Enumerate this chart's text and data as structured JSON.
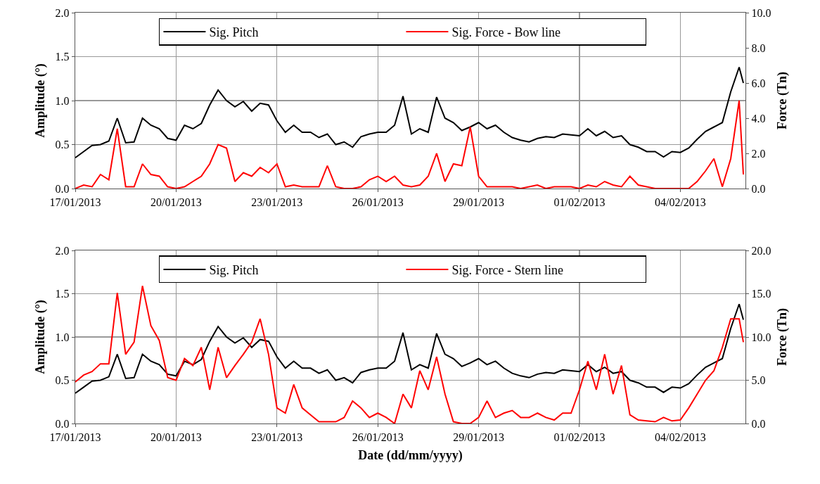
{
  "chart_data": [
    {
      "type": "line",
      "ylabel": "Amplitude (°)",
      "y2label": "Force (Tn)",
      "grid": true,
      "legend": "top",
      "line_style": "solid",
      "x": [
        "2013-01-17T00:00",
        "2013-01-17T06:00",
        "2013-01-17T12:00",
        "2013-01-17T18:00",
        "2013-01-18T00:00",
        "2013-01-18T06:00",
        "2013-01-18T12:00",
        "2013-01-18T18:00",
        "2013-01-19T00:00",
        "2013-01-19T06:00",
        "2013-01-19T12:00",
        "2013-01-19T18:00",
        "2013-01-20T00:00",
        "2013-01-20T06:00",
        "2013-01-20T12:00",
        "2013-01-20T18:00",
        "2013-01-21T00:00",
        "2013-01-21T06:00",
        "2013-01-21T12:00",
        "2013-01-21T18:00",
        "2013-01-22T00:00",
        "2013-01-22T06:00",
        "2013-01-22T12:00",
        "2013-01-22T18:00",
        "2013-01-23T00:00",
        "2013-01-23T06:00",
        "2013-01-23T12:00",
        "2013-01-23T18:00",
        "2013-01-24T00:00",
        "2013-01-24T06:00",
        "2013-01-24T12:00",
        "2013-01-24T18:00",
        "2013-01-25T00:00",
        "2013-01-25T06:00",
        "2013-01-25T12:00",
        "2013-01-25T18:00",
        "2013-01-26T00:00",
        "2013-01-26T06:00",
        "2013-01-26T12:00",
        "2013-01-26T18:00",
        "2013-01-27T00:00",
        "2013-01-27T06:00",
        "2013-01-27T12:00",
        "2013-01-27T18:00",
        "2013-01-28T00:00",
        "2013-01-28T06:00",
        "2013-01-28T12:00",
        "2013-01-28T18:00",
        "2013-01-29T00:00",
        "2013-01-29T06:00",
        "2013-01-29T12:00",
        "2013-01-29T18:00",
        "2013-01-30T00:00",
        "2013-01-30T06:00",
        "2013-01-30T12:00",
        "2013-01-30T18:00",
        "2013-01-31T00:00",
        "2013-01-31T06:00",
        "2013-01-31T12:00",
        "2013-01-31T18:00",
        "2013-02-01T00:00",
        "2013-02-01T06:00",
        "2013-02-01T12:00",
        "2013-02-01T18:00",
        "2013-02-02T00:00",
        "2013-02-02T06:00",
        "2013-02-02T12:00",
        "2013-02-02T18:00",
        "2013-02-03T00:00",
        "2013-02-03T06:00",
        "2013-02-03T12:00",
        "2013-02-03T18:00",
        "2013-02-04T00:00",
        "2013-02-04T06:00",
        "2013-02-04T12:00",
        "2013-02-04T18:00",
        "2013-02-05T00:00",
        "2013-02-05T06:00",
        "2013-02-05T12:00",
        "2013-02-05T18:00",
        "2013-02-05T21:00"
      ],
      "series": [
        {
          "name": "Sig. Pitch",
          "color": "#000000",
          "values": [
            0.35,
            0.42,
            0.49,
            0.5,
            0.54,
            0.8,
            0.52,
            0.53,
            0.8,
            0.72,
            0.68,
            0.57,
            0.55,
            0.72,
            0.68,
            0.74,
            0.95,
            1.12,
            1.0,
            0.93,
            0.99,
            0.88,
            0.97,
            0.95,
            0.77,
            0.64,
            0.72,
            0.64,
            0.64,
            0.58,
            0.62,
            0.5,
            0.53,
            0.47,
            0.59,
            0.62,
            0.64,
            0.64,
            0.72,
            1.05,
            0.62,
            0.68,
            0.64,
            1.04,
            0.8,
            0.75,
            0.66,
            0.7,
            0.75,
            0.68,
            0.72,
            0.64,
            0.58,
            0.55,
            0.53,
            0.57,
            0.59,
            0.58,
            0.62,
            0.61,
            0.6,
            0.68,
            0.6,
            0.65,
            0.58,
            0.6,
            0.5,
            0.47,
            0.42,
            0.42,
            0.36,
            0.42,
            0.41,
            0.46,
            0.56,
            0.65,
            0.7,
            0.75,
            1.1,
            1.38,
            1.2
          ]
        },
        {
          "name": "Sig. Force - Bow line",
          "color": "#ff0000",
          "axis": "y2",
          "values": [
            0,
            0.2,
            0.1,
            0.8,
            0.5,
            3.4,
            0.1,
            0.1,
            1.4,
            0.8,
            0.7,
            0.1,
            0,
            0.1,
            0.4,
            0.7,
            1.4,
            2.5,
            2.3,
            0.4,
            0.9,
            0.7,
            1.2,
            0.9,
            1.4,
            0.1,
            0.2,
            0.1,
            0.1,
            0.1,
            1.3,
            0.1,
            0,
            0,
            0.1,
            0.5,
            0.7,
            0.4,
            0.7,
            0.2,
            0.1,
            0.2,
            0.7,
            2.0,
            0.4,
            1.4,
            1.3,
            3.5,
            0.7,
            0.1,
            0.1,
            0.1,
            0.1,
            0,
            0.1,
            0.2,
            0,
            0.1,
            0.1,
            0.1,
            0,
            0.2,
            0.1,
            0.4,
            0.2,
            0.1,
            0.7,
            0.2,
            0.1,
            0,
            0,
            0,
            0,
            0,
            0.4,
            1.0,
            1.7,
            0.1,
            1.7,
            5.0,
            0.8
          ]
        }
      ],
      "xlim": [
        "2013-01-17",
        "2013-02-05T22:30"
      ],
      "xticks": [
        {
          "value": "2013-01-17",
          "label": "17/01/2013"
        },
        {
          "value": "2013-01-20",
          "label": "20/01/2013"
        },
        {
          "value": "2013-01-23",
          "label": "23/01/2013"
        },
        {
          "value": "2013-01-26",
          "label": "26/01/2013"
        },
        {
          "value": "2013-01-29",
          "label": "29/01/2013"
        },
        {
          "value": "2013-02-01",
          "label": "01/02/2013"
        },
        {
          "value": "2013-02-04",
          "label": "04/02/2013"
        }
      ],
      "ylim": [
        0,
        2
      ],
      "yticks": [
        {
          "value": 0,
          "label": "0.0"
        },
        {
          "value": 0.5,
          "label": "0.5"
        },
        {
          "value": 1,
          "label": "1.0"
        },
        {
          "value": 1.5,
          "label": "1.5"
        },
        {
          "value": 2,
          "label": "2.0"
        }
      ],
      "y2lim": [
        0,
        10
      ],
      "y2ticks": [
        {
          "value": 0,
          "label": "0.0"
        },
        {
          "value": 2,
          "label": "2.0"
        },
        {
          "value": 4,
          "label": "4.0"
        },
        {
          "value": 6,
          "label": "6.0"
        },
        {
          "value": 8,
          "label": "8.0"
        },
        {
          "value": 10,
          "label": "10.0"
        }
      ]
    },
    {
      "type": "line",
      "xlabel": "Date (dd/mm/yyyy)",
      "ylabel": "Amplitude (°)",
      "y2label": "Force (Tn)",
      "grid": true,
      "legend": "top",
      "line_style": "solid",
      "x": [
        "2013-01-17T00:00",
        "2013-01-17T06:00",
        "2013-01-17T12:00",
        "2013-01-17T18:00",
        "2013-01-18T00:00",
        "2013-01-18T06:00",
        "2013-01-18T12:00",
        "2013-01-18T18:00",
        "2013-01-19T00:00",
        "2013-01-19T06:00",
        "2013-01-19T12:00",
        "2013-01-19T18:00",
        "2013-01-20T00:00",
        "2013-01-20T06:00",
        "2013-01-20T12:00",
        "2013-01-20T18:00",
        "2013-01-21T00:00",
        "2013-01-21T06:00",
        "2013-01-21T12:00",
        "2013-01-21T18:00",
        "2013-01-22T00:00",
        "2013-01-22T06:00",
        "2013-01-22T12:00",
        "2013-01-22T18:00",
        "2013-01-23T00:00",
        "2013-01-23T06:00",
        "2013-01-23T12:00",
        "2013-01-23T18:00",
        "2013-01-24T00:00",
        "2013-01-24T06:00",
        "2013-01-24T12:00",
        "2013-01-24T18:00",
        "2013-01-25T00:00",
        "2013-01-25T06:00",
        "2013-01-25T12:00",
        "2013-01-25T18:00",
        "2013-01-26T00:00",
        "2013-01-26T06:00",
        "2013-01-26T12:00",
        "2013-01-26T18:00",
        "2013-01-27T00:00",
        "2013-01-27T06:00",
        "2013-01-27T12:00",
        "2013-01-27T18:00",
        "2013-01-28T00:00",
        "2013-01-28T06:00",
        "2013-01-28T12:00",
        "2013-01-28T18:00",
        "2013-01-29T00:00",
        "2013-01-29T06:00",
        "2013-01-29T12:00",
        "2013-01-29T18:00",
        "2013-01-30T00:00",
        "2013-01-30T06:00",
        "2013-01-30T12:00",
        "2013-01-30T18:00",
        "2013-01-31T00:00",
        "2013-01-31T06:00",
        "2013-01-31T12:00",
        "2013-01-31T18:00",
        "2013-02-01T00:00",
        "2013-02-01T06:00",
        "2013-02-01T12:00",
        "2013-02-01T18:00",
        "2013-02-02T00:00",
        "2013-02-02T06:00",
        "2013-02-02T12:00",
        "2013-02-02T18:00",
        "2013-02-03T00:00",
        "2013-02-03T06:00",
        "2013-02-03T12:00",
        "2013-02-03T18:00",
        "2013-02-04T00:00",
        "2013-02-04T06:00",
        "2013-02-04T12:00",
        "2013-02-04T18:00",
        "2013-02-05T00:00",
        "2013-02-05T06:00",
        "2013-02-05T12:00",
        "2013-02-05T18:00",
        "2013-02-05T21:00"
      ],
      "series": [
        {
          "name": "Sig. Pitch",
          "color": "#000000",
          "values": [
            0.35,
            0.42,
            0.49,
            0.5,
            0.54,
            0.8,
            0.52,
            0.53,
            0.8,
            0.72,
            0.68,
            0.57,
            0.55,
            0.72,
            0.68,
            0.74,
            0.95,
            1.12,
            1.0,
            0.93,
            0.99,
            0.88,
            0.97,
            0.95,
            0.77,
            0.64,
            0.72,
            0.64,
            0.64,
            0.58,
            0.62,
            0.5,
            0.53,
            0.47,
            0.59,
            0.62,
            0.64,
            0.64,
            0.72,
            1.05,
            0.62,
            0.68,
            0.64,
            1.04,
            0.8,
            0.75,
            0.66,
            0.7,
            0.75,
            0.68,
            0.72,
            0.64,
            0.58,
            0.55,
            0.53,
            0.57,
            0.59,
            0.58,
            0.62,
            0.61,
            0.6,
            0.68,
            0.6,
            0.65,
            0.58,
            0.6,
            0.5,
            0.47,
            0.42,
            0.42,
            0.36,
            0.42,
            0.41,
            0.46,
            0.56,
            0.65,
            0.7,
            0.75,
            1.1,
            1.38,
            1.2
          ]
        },
        {
          "name": "Sig. Force - Stern line",
          "color": "#ff0000",
          "axis": "y2",
          "values": [
            4.8,
            5.6,
            6.0,
            6.9,
            6.9,
            15.1,
            8.0,
            9.4,
            15.9,
            11.3,
            9.6,
            5.3,
            5.0,
            7.5,
            6.7,
            8.8,
            3.9,
            8.8,
            5.3,
            6.7,
            8.0,
            9.4,
            12.1,
            8.0,
            1.8,
            1.2,
            4.5,
            1.8,
            1.0,
            0.2,
            0.2,
            0.2,
            0.7,
            2.6,
            1.8,
            0.7,
            1.2,
            0.7,
            0,
            3.4,
            1.8,
            6.1,
            3.9,
            7.7,
            3.4,
            0.2,
            0,
            0,
            0.7,
            2.6,
            0.7,
            1.2,
            1.5,
            0.7,
            0.7,
            1.2,
            0.7,
            0.4,
            1.2,
            1.2,
            3.9,
            7.2,
            3.9,
            8.0,
            3.4,
            6.7,
            1.0,
            0.4,
            0.3,
            0.2,
            0.7,
            0.3,
            0.4,
            1.8,
            3.4,
            5.0,
            6.1,
            8.8,
            12.1,
            12.1,
            9.4
          ]
        }
      ],
      "xlim": [
        "2013-01-17",
        "2013-02-05T22:30"
      ],
      "xticks": [
        {
          "value": "2013-01-17",
          "label": "17/01/2013"
        },
        {
          "value": "2013-01-20",
          "label": "20/01/2013"
        },
        {
          "value": "2013-01-23",
          "label": "23/01/2013"
        },
        {
          "value": "2013-01-26",
          "label": "26/01/2013"
        },
        {
          "value": "2013-01-29",
          "label": "29/01/2013"
        },
        {
          "value": "2013-02-01",
          "label": "01/02/2013"
        },
        {
          "value": "2013-02-04",
          "label": "04/02/2013"
        }
      ],
      "ylim": [
        0,
        2
      ],
      "yticks": [
        {
          "value": 0,
          "label": "0.0"
        },
        {
          "value": 0.5,
          "label": "0.5"
        },
        {
          "value": 1,
          "label": "1.0"
        },
        {
          "value": 1.5,
          "label": "1.5"
        },
        {
          "value": 2,
          "label": "2.0"
        }
      ],
      "y2lim": [
        0,
        20
      ],
      "y2ticks": [
        {
          "value": 0,
          "label": "0.0"
        },
        {
          "value": 5,
          "label": "5.0"
        },
        {
          "value": 10,
          "label": "10.0"
        },
        {
          "value": 15,
          "label": "15.0"
        },
        {
          "value": 20,
          "label": "20.0"
        }
      ]
    }
  ]
}
